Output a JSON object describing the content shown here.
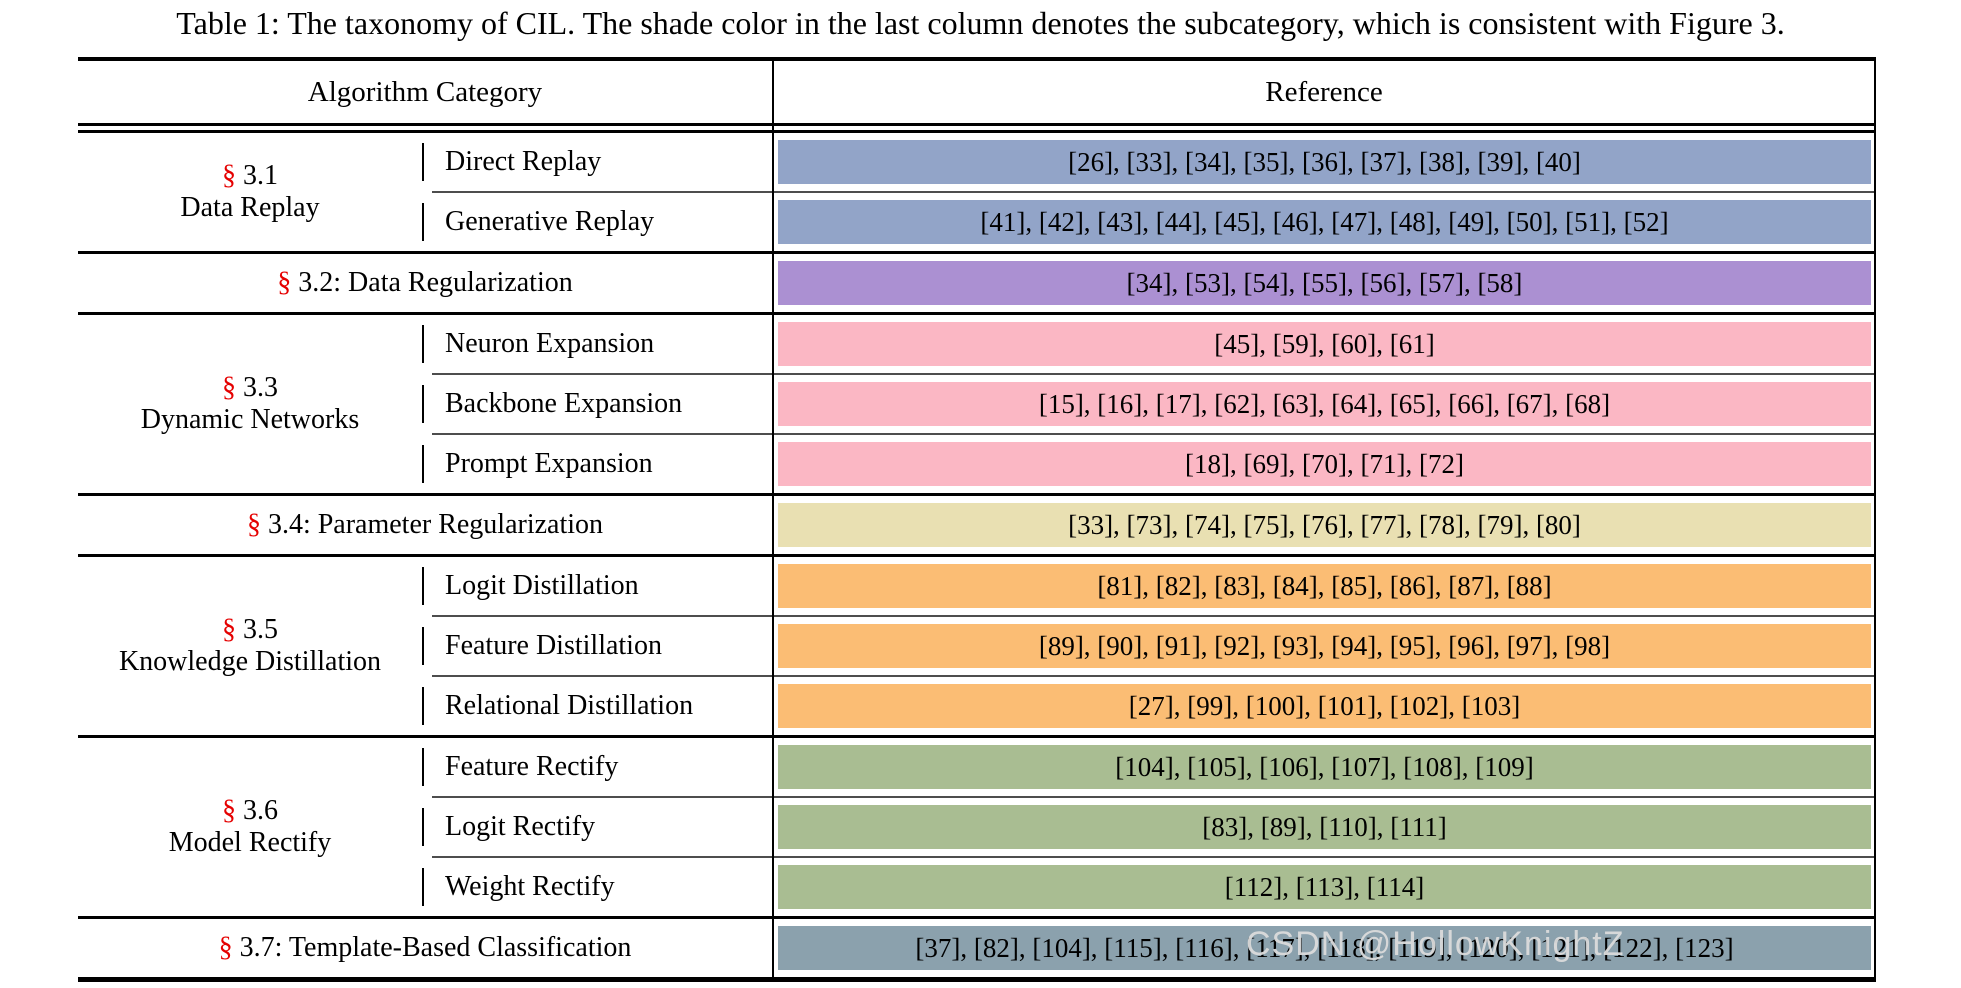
{
  "caption": "Table 1: The taxonomy of CIL. The shade color in the last column denotes the subcategory, which is consistent with Figure 3.",
  "watermark": "CSDN @HollowKnightZ",
  "colors": {
    "section_symbol": "#e50000",
    "rule_black": "#000000",
    "cline_gray": "#4d4d4d"
  },
  "table": {
    "header": {
      "algorithm_category": "Algorithm Category",
      "reference": "Reference"
    },
    "sections": [
      {
        "type": "multi",
        "symbol": "§",
        "number": "3.1",
        "title": "Data Replay",
        "color": "#92a4c8",
        "rows": [
          {
            "name": "Direct Replay",
            "refs": "[26], [33], [34], [35], [36], [37], [38], [39], [40]"
          },
          {
            "name": "Generative Replay",
            "refs": "[41], [42], [43], [44], [45], [46], [47], [48], [49], [50], [51], [52]"
          }
        ]
      },
      {
        "type": "single",
        "symbol": "§",
        "label": " 3.2: Data Regularization",
        "color": "#ab90d2",
        "refs": "[34], [53], [54], [55], [56], [57], [58]"
      },
      {
        "type": "multi",
        "symbol": "§",
        "number": "3.3",
        "title": "Dynamic Networks",
        "color": "#fbb7c4",
        "rows": [
          {
            "name": "Neuron Expansion",
            "refs": "[45], [59], [60], [61]"
          },
          {
            "name": "Backbone Expansion",
            "refs": "[15], [16], [17], [62], [63], [64], [65], [66], [67], [68]"
          },
          {
            "name": "Prompt Expansion",
            "refs": "[18], [69], [70], [71], [72]"
          }
        ]
      },
      {
        "type": "single",
        "symbol": "§",
        "label": " 3.4: Parameter Regularization",
        "color": "#e9e0b2",
        "refs": "[33], [73], [74], [75], [76], [77], [78], [79], [80]"
      },
      {
        "type": "multi",
        "symbol": "§",
        "number": "3.5",
        "title": "Knowledge Distillation",
        "color": "#fbbd74",
        "rows": [
          {
            "name": "Logit Distillation",
            "refs": "[81], [82], [83], [84], [85], [86], [87], [88]"
          },
          {
            "name": "Feature Distillation",
            "refs": "[89], [90], [91], [92], [93], [94], [95], [96], [97], [98]"
          },
          {
            "name": "Relational Distillation",
            "refs": "[27], [99], [100], [101], [102], [103]"
          }
        ]
      },
      {
        "type": "multi",
        "symbol": "§",
        "number": "3.6",
        "title": "Model Rectify",
        "color": "#a9bd92",
        "rows": [
          {
            "name": "Feature Rectify",
            "refs": "[104], [105], [106], [107], [108], [109]"
          },
          {
            "name": "Logit Rectify",
            "refs": "[83], [89], [110], [111]"
          },
          {
            "name": "Weight Rectify",
            "refs": "[112], [113], [114]"
          }
        ]
      },
      {
        "type": "single",
        "symbol": "§",
        "label": " 3.7: Template-Based Classification",
        "color": "#8ba1ad",
        "refs": "[37], [82], [104], [115], [116], [117], [118], [119], [120], [121], [122], [123]"
      }
    ]
  }
}
